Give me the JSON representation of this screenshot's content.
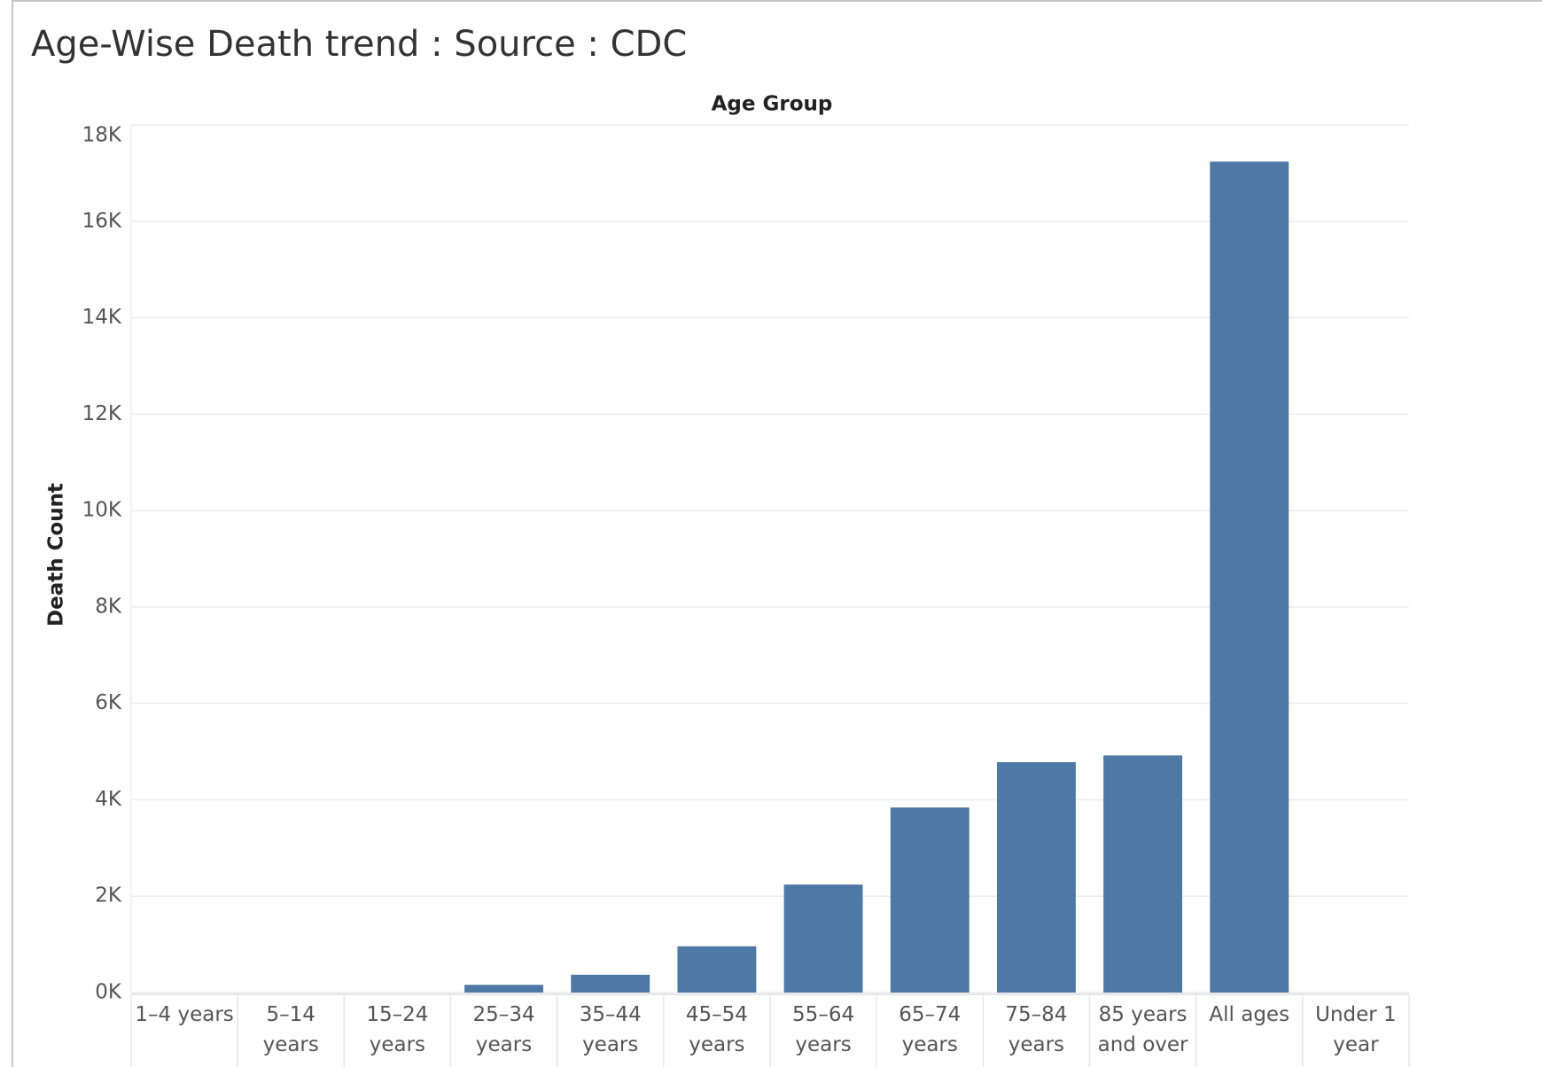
{
  "chart_data": {
    "type": "bar",
    "title": "Age-Wise Death trend : Source : CDC",
    "x_label": "Age Group",
    "y_label": "Death Count",
    "categories": [
      "1–4 years",
      "5–14 years",
      "15–24 years",
      "25–34 years",
      "35–44 years",
      "45–54 years",
      "55–64 years",
      "65–74 years",
      "75–84 years",
      "85 years and over",
      "All ages",
      "Under 1 year"
    ],
    "values": [
      0,
      0,
      0,
      160,
      370,
      960,
      2240,
      3840,
      4780,
      4920,
      17240,
      0
    ],
    "color": "#4e79a7",
    "ylim": [
      0,
      18000
    ],
    "yticks": [
      {
        "value": 0,
        "label": "0K"
      },
      {
        "value": 2000,
        "label": "2K"
      },
      {
        "value": 4000,
        "label": "4K"
      },
      {
        "value": 6000,
        "label": "6K"
      },
      {
        "value": 8000,
        "label": "8K"
      },
      {
        "value": 10000,
        "label": "10K"
      },
      {
        "value": 12000,
        "label": "12K"
      },
      {
        "value": 14000,
        "label": "14K"
      },
      {
        "value": 16000,
        "label": "16K"
      },
      {
        "value": 18000,
        "label": "18K"
      }
    ],
    "grid": true
  }
}
